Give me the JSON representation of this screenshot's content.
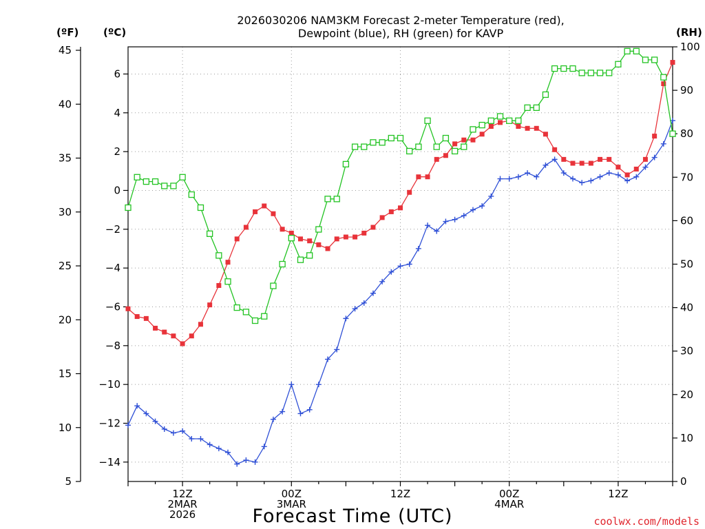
{
  "chart_data": {
    "type": "line",
    "title": [
      "2026030206 NAM3KM Forecast 2-meter Temperature (red),",
      "Dewpoint (blue), RH (green) for KAVP"
    ],
    "xlabel": "Forecast Time (UTC)",
    "credit": "coolwx.com/models",
    "units": {
      "f": "(ºF)",
      "c": "(ºC)",
      "rh": "(RH)"
    },
    "x_hours_range": [
      0,
      60
    ],
    "x_ticks": [
      {
        "hour": 6,
        "lines": [
          "12Z",
          "2MAR",
          "2026"
        ]
      },
      {
        "hour": 18,
        "lines": [
          "00Z",
          "3MAR"
        ]
      },
      {
        "hour": 30,
        "lines": [
          "12Z"
        ]
      },
      {
        "hour": 42,
        "lines": [
          "00Z",
          "4MAR"
        ]
      },
      {
        "hour": 54,
        "lines": [
          "12Z"
        ]
      }
    ],
    "ylim_celsius": [
      -15,
      7.4
    ],
    "y_left_f_ticks": [
      "5",
      "10",
      "15",
      "20",
      "25",
      "30",
      "35",
      "40",
      "45"
    ],
    "y_left_c_ticks": [
      "−14",
      "−12",
      "−10",
      "−8",
      "−6",
      "−4",
      "−2",
      "0",
      "2",
      "4",
      "6"
    ],
    "y_right_rh_ticks": [
      "0",
      "10",
      "20",
      "30",
      "40",
      "50",
      "60",
      "70",
      "80",
      "90",
      "100"
    ],
    "x_hours": [
      0,
      1,
      2,
      3,
      4,
      5,
      6,
      7,
      8,
      9,
      10,
      11,
      12,
      13,
      14,
      15,
      16,
      17,
      18,
      19,
      20,
      21,
      22,
      23,
      24,
      25,
      26,
      27,
      28,
      29,
      30,
      31,
      32,
      33,
      34,
      35,
      36,
      37,
      38,
      39,
      40,
      41,
      42,
      43,
      44,
      45,
      46,
      47,
      48,
      49,
      50,
      51,
      52,
      53,
      54,
      55,
      56,
      57,
      58,
      59,
      60
    ],
    "series": [
      {
        "name": "2-meter Temperature (°C)",
        "color": "#e8333a",
        "marker": "filled-square",
        "values": [
          -6.1,
          -6.5,
          -6.6,
          -7.1,
          -7.3,
          -7.5,
          -7.9,
          -7.5,
          -6.9,
          -5.9,
          -4.9,
          -3.7,
          -2.5,
          -1.9,
          -1.1,
          -0.8,
          -1.2,
          -2.0,
          -2.2,
          -2.5,
          -2.6,
          -2.8,
          -3.0,
          -2.5,
          -2.4,
          -2.4,
          -2.2,
          -1.9,
          -1.4,
          -1.1,
          -0.9,
          -0.1,
          0.7,
          0.7,
          1.6,
          1.8,
          2.4,
          2.6,
          2.6,
          2.9,
          3.3,
          3.5,
          3.6,
          3.3,
          3.2,
          3.2,
          2.9,
          2.1,
          1.6,
          1.4,
          1.4,
          1.4,
          1.6,
          1.6,
          1.2,
          0.8,
          1.1,
          1.6,
          2.8,
          5.5,
          6.6
        ]
      },
      {
        "name": "Dewpoint (°C)",
        "color": "#2e4fd6",
        "marker": "plus",
        "values": [
          -12.1,
          -11.1,
          -11.5,
          -11.9,
          -12.3,
          -12.5,
          -12.4,
          -12.8,
          -12.8,
          -13.1,
          -13.3,
          -13.5,
          -14.1,
          -13.9,
          -14.0,
          -13.2,
          -11.8,
          -11.4,
          -10.0,
          -11.5,
          -11.3,
          -10.0,
          -8.7,
          -8.2,
          -6.6,
          -6.1,
          -5.8,
          -5.3,
          -4.7,
          -4.2,
          -3.9,
          -3.8,
          -3.0,
          -1.8,
          -2.1,
          -1.6,
          -1.5,
          -1.3,
          -1.0,
          -0.8,
          -0.3,
          0.6,
          0.6,
          0.7,
          0.9,
          0.7,
          1.3,
          1.6,
          0.9,
          0.6,
          0.4,
          0.5,
          0.7,
          0.9,
          0.8,
          0.5,
          0.7,
          1.2,
          1.7,
          2.4,
          3.6
        ]
      },
      {
        "name": "RH (%)",
        "color": "#22c322",
        "marker": "open-square",
        "values": [
          63,
          70,
          69,
          69,
          68,
          68,
          70,
          66,
          63,
          57,
          52,
          46,
          40,
          39,
          37,
          38,
          45,
          50,
          56,
          51,
          52,
          58,
          65,
          65,
          73,
          77,
          77,
          78,
          78,
          79,
          79,
          76,
          77,
          83,
          77,
          79,
          76,
          77,
          81,
          82,
          83,
          84,
          83,
          83,
          86,
          86,
          89,
          95,
          95,
          95,
          94,
          94,
          94,
          94,
          96,
          99,
          99,
          97,
          97,
          93,
          80
        ]
      }
    ]
  }
}
